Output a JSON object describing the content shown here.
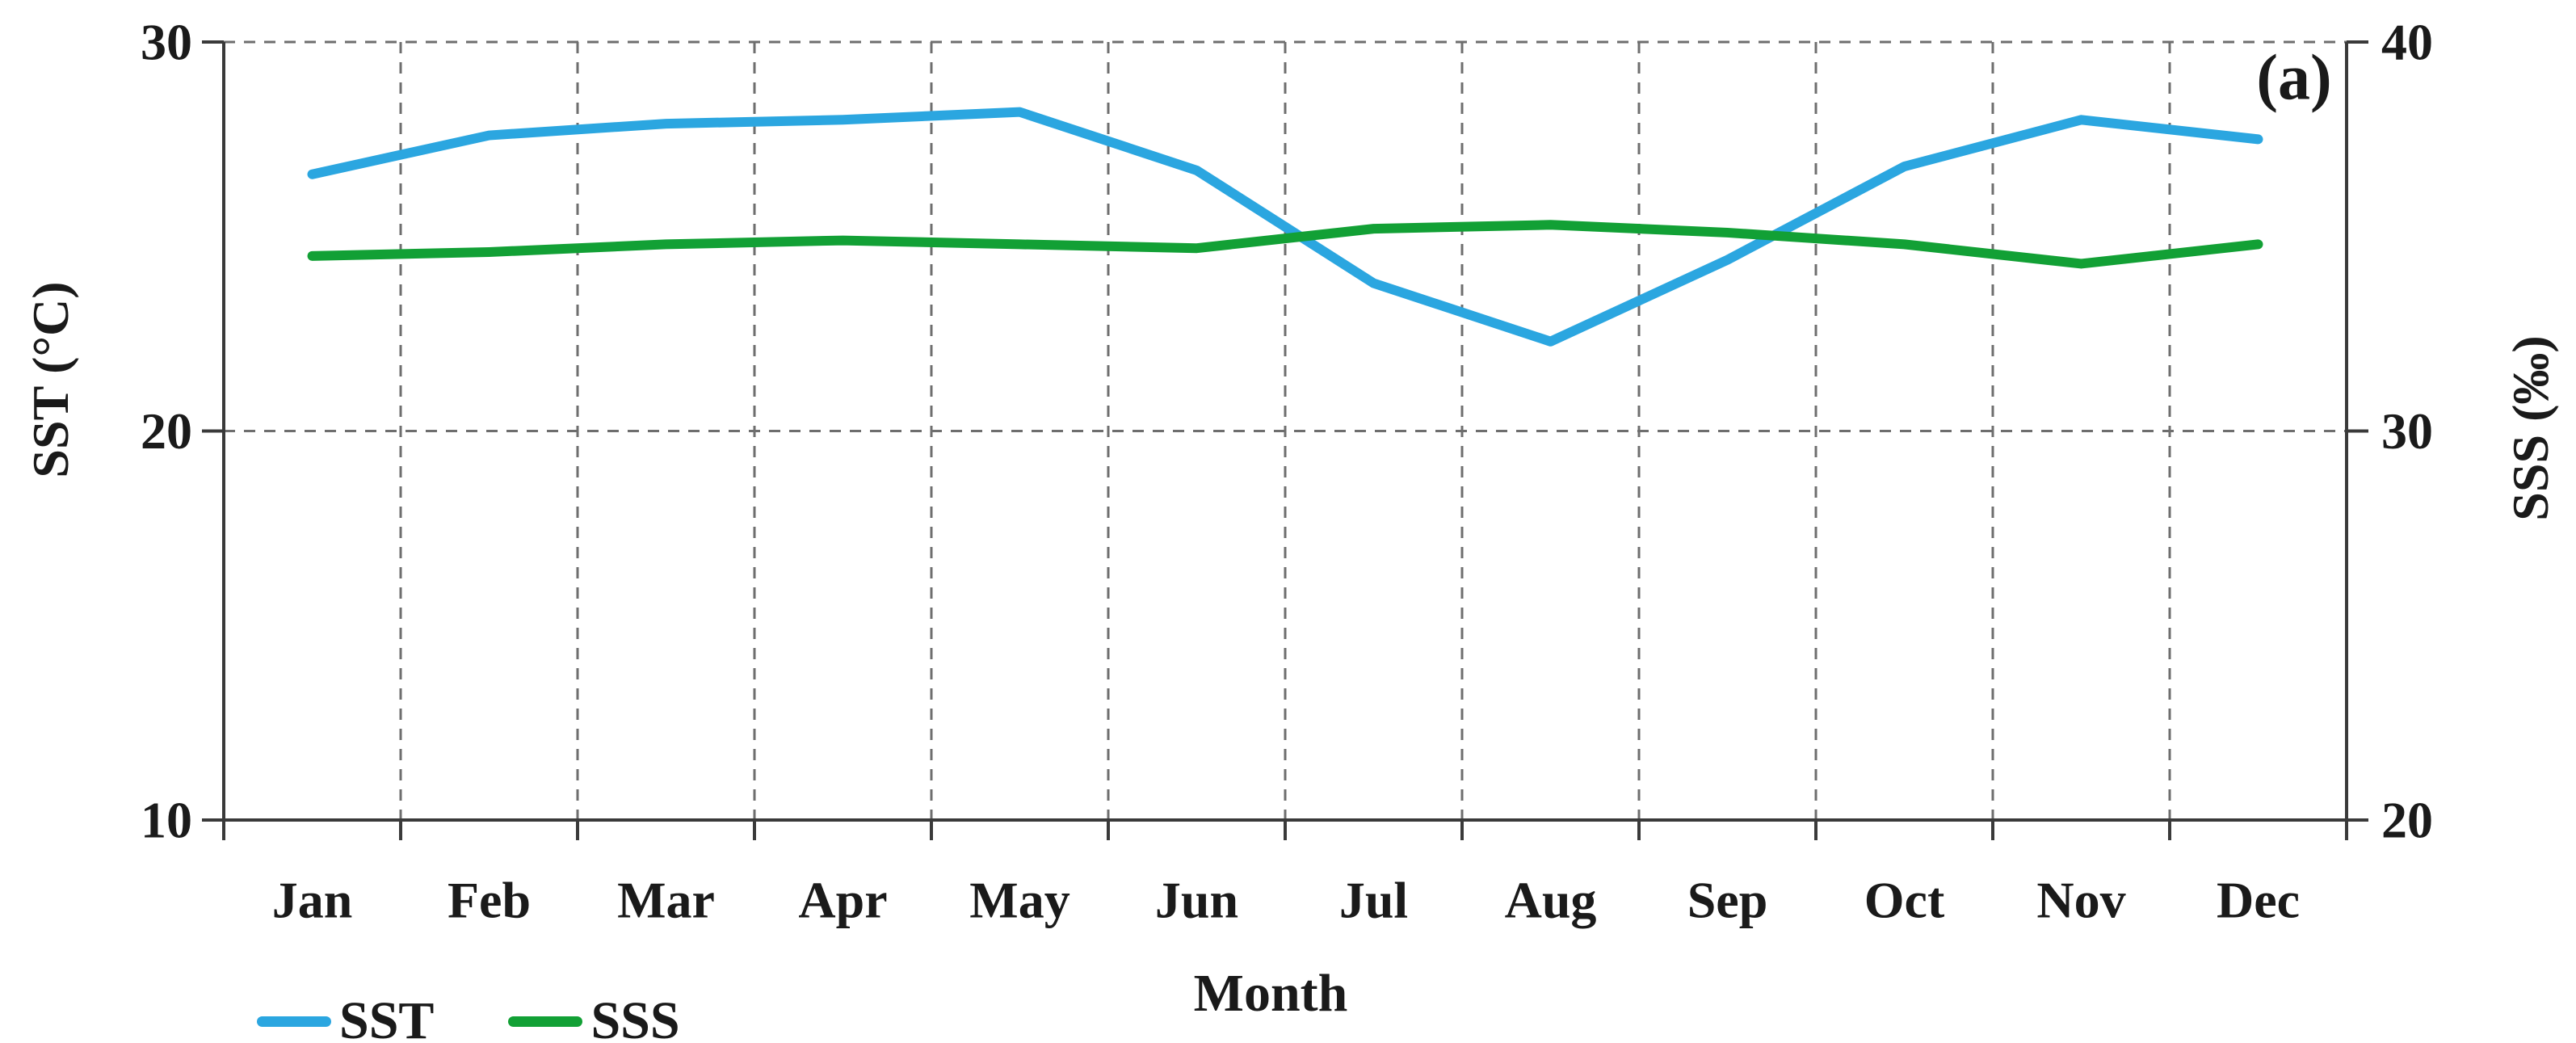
{
  "chart_data": {
    "type": "line",
    "panel_label": "(a)",
    "categories": [
      "Jan",
      "Feb",
      "Mar",
      "Apr",
      "May",
      "Jun",
      "Jul",
      "Aug",
      "Sep",
      "Oct",
      "Nov",
      "Dec"
    ],
    "x_axis": {
      "label": "Month"
    },
    "left_axis": {
      "label": "SST (°C)",
      "range": [
        10,
        30
      ],
      "ticks": [
        30,
        20,
        10
      ]
    },
    "right_axis": {
      "label": "SSS (‰)",
      "range": [
        20,
        40
      ],
      "ticks": [
        40,
        30,
        20
      ]
    },
    "grid": {
      "style": "dashed",
      "on": true
    },
    "legend_position": "bottom-left",
    "series": [
      {
        "name": "SST",
        "axis": "left",
        "color": "#2BA6E0",
        "values": [
          26.6,
          27.6,
          27.9,
          28.0,
          28.2,
          26.7,
          23.8,
          22.3,
          24.4,
          26.8,
          28.0,
          27.5
        ]
      },
      {
        "name": "SSS",
        "axis": "right",
        "color": "#12A035",
        "values": [
          34.5,
          34.6,
          34.8,
          34.9,
          34.8,
          34.7,
          35.2,
          35.3,
          35.1,
          34.8,
          34.3,
          34.8
        ]
      }
    ]
  },
  "colors": {
    "text": "#1a1a1a",
    "axis": "#3a3a3a",
    "grid": "#6e6e6e"
  }
}
